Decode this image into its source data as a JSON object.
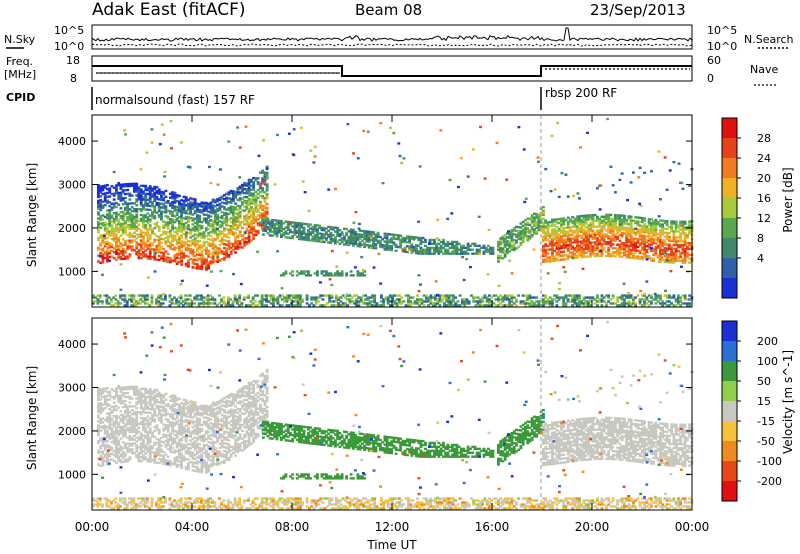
{
  "header": {
    "title": "Adak East (fitACF)",
    "beam": "Beam 08",
    "date": "23/Sep/2013"
  },
  "strip_labels": {
    "nsky": "N.Sky",
    "nsearch": "N.Search",
    "freq_line1": "Freq.",
    "freq_line2": "[MHz]",
    "nave": "Nave",
    "cpid": "CPID"
  },
  "strip_ticks": {
    "nsky_top": "10^5",
    "nsky_bottom": "10^0",
    "nsearch_top": "10^5",
    "nsearch_bottom": "10^0",
    "freq_top": "18",
    "freq_bottom": "8",
    "nave_top": "60",
    "nave_bottom": "0"
  },
  "cpid_segments": [
    {
      "label": "normalsound (fast) 157 RF",
      "start_hour": 0
    },
    {
      "label": "rbsp 200 RF",
      "start_hour": 18
    }
  ],
  "chart_data": [
    {
      "type": "heatmap",
      "panel": "power",
      "ylabel": "Slant Range [km]",
      "colorbar_label": "Power [dB]",
      "colorbar_ticks": [
        "4",
        "8",
        "12",
        "16",
        "20",
        "24",
        "28"
      ],
      "colorbar_range": [
        0,
        32
      ],
      "x_ticks": [
        "00:00",
        "04:00",
        "08:00",
        "12:00",
        "16:00",
        "20:00",
        "00:00"
      ],
      "x_range_hours": [
        0,
        24
      ],
      "y_ticks": [
        "1000",
        "2000",
        "3000",
        "4000"
      ],
      "y_range_km": [
        180,
        4600
      ],
      "colors": [
        "#1a2fd6",
        "#2e62a8",
        "#3f8a6a",
        "#59a84e",
        "#a8c93a",
        "#f0b028",
        "#f27a20",
        "#e8401a",
        "#e01010"
      ],
      "features": [
        {
          "name": "daytime ionospheric backscatter",
          "hours": [
            0.2,
            7.0
          ],
          "range_km": [
            1150,
            3000
          ],
          "level_db": 26
        },
        {
          "name": "morning range-decreasing echo",
          "hours": [
            6.8,
            16.0
          ],
          "range_km": [
            1350,
            2200
          ],
          "level_db": 8
        },
        {
          "name": "evening rising echo",
          "hours": [
            16.2,
            18.0
          ],
          "range_km": [
            1600,
            2450
          ],
          "level_db": 10
        },
        {
          "name": "evening ionospheric backscatter",
          "hours": [
            18.0,
            24.0
          ],
          "range_km": [
            1200,
            2200
          ],
          "level_db": 24
        },
        {
          "name": "near-range ground clutter",
          "hours": [
            0,
            24
          ],
          "range_km": [
            180,
            450
          ],
          "level_db": 10
        }
      ]
    },
    {
      "type": "heatmap",
      "panel": "velocity",
      "ylabel": "Slant Range [km]",
      "xlabel": "Time UT",
      "colorbar_label": "Velocity [m s^-1]",
      "colorbar_ticks": [
        "200",
        "100",
        "50",
        "15",
        "-15",
        "-50",
        "-100",
        "-200"
      ],
      "colorbar_range": [
        -250,
        250
      ],
      "x_ticks": [
        "00:00",
        "04:00",
        "08:00",
        "12:00",
        "16:00",
        "20:00",
        "00:00"
      ],
      "x_range_hours": [
        0,
        24
      ],
      "y_ticks": [
        "1000",
        "2000",
        "3000",
        "4000"
      ],
      "y_range_km": [
        180,
        4600
      ],
      "colors": [
        "#1a2fd6",
        "#2a6fd6",
        "#3a9a3a",
        "#8fd04a",
        "#c8c8c0",
        "#f5c23a",
        "#f08a20",
        "#e84818",
        "#e01010"
      ],
      "features": [
        {
          "name": "daytime echo near zero velocity",
          "hours": [
            0.2,
            7.0
          ],
          "range_km": [
            1150,
            3000
          ],
          "velocity": 0
        },
        {
          "name": "morning echo moving toward radar",
          "hours": [
            6.8,
            16.0
          ],
          "range_km": [
            1350,
            2200
          ],
          "velocity": 60
        },
        {
          "name": "evening echo near zero velocity",
          "hours": [
            18.0,
            24.0
          ],
          "range_km": [
            1200,
            2200
          ],
          "velocity": 0
        },
        {
          "name": "near-range clutter",
          "hours": [
            0,
            24
          ],
          "range_km": [
            180,
            450
          ],
          "velocity": -30
        }
      ]
    }
  ]
}
